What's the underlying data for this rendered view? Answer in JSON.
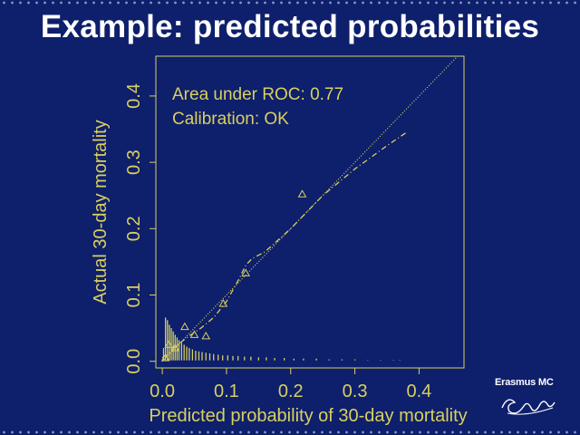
{
  "slide": {
    "title": "Example: predicted probabilities"
  },
  "logo": {
    "text": "Erasmus MC",
    "script_text": "Ezafung"
  },
  "colors": {
    "background": "#0e1f6b",
    "title": "#ffffff",
    "plot": "#d8d060"
  },
  "chart_data": {
    "type": "scatter",
    "title": "",
    "xlabel": "Predicted probability of 30-day mortality",
    "ylabel": "Actual 30-day mortality",
    "xlim": [
      -0.01,
      0.47
    ],
    "ylim": [
      -0.01,
      0.46
    ],
    "xticks": [
      "0.0",
      "0.1",
      "0.2",
      "0.3",
      "0.4"
    ],
    "xtick_values": [
      0.0,
      0.1,
      0.2,
      0.3,
      0.4
    ],
    "yticks": [
      "0.0",
      "0.1",
      "0.2",
      "0.3",
      "0.4"
    ],
    "ytick_values": [
      0.0,
      0.1,
      0.2,
      0.3,
      0.4
    ],
    "annotations": [
      "Area under ROC: 0.77",
      "Calibration: OK"
    ],
    "ideal_line": {
      "name": "ideal",
      "x": [
        0.0,
        0.46
      ],
      "y": [
        0.0,
        0.46
      ]
    },
    "smooth_curve": {
      "name": "calibration curve",
      "x": [
        0.0,
        0.02,
        0.04,
        0.06,
        0.08,
        0.1,
        0.12,
        0.13,
        0.14,
        0.16,
        0.2,
        0.25,
        0.3,
        0.35,
        0.38
      ],
      "y": [
        0.005,
        0.022,
        0.037,
        0.05,
        0.066,
        0.09,
        0.125,
        0.145,
        0.155,
        0.165,
        0.2,
        0.25,
        0.29,
        0.325,
        0.345
      ]
    },
    "group_points": {
      "name": "observed groups",
      "x": [
        0.005,
        0.01,
        0.02,
        0.035,
        0.05,
        0.068,
        0.095,
        0.13,
        0.218
      ],
      "y": [
        0.005,
        0.025,
        0.02,
        0.052,
        0.04,
        0.038,
        0.087,
        0.133,
        0.252
      ]
    },
    "spike_histogram": {
      "name": "distribution of predictions",
      "x": [
        0.002,
        0.005,
        0.008,
        0.011,
        0.014,
        0.017,
        0.02,
        0.023,
        0.026,
        0.03,
        0.034,
        0.038,
        0.042,
        0.047,
        0.052,
        0.057,
        0.062,
        0.068,
        0.074,
        0.08,
        0.087,
        0.094,
        0.102,
        0.11,
        0.118,
        0.128,
        0.138,
        0.15,
        0.162,
        0.175,
        0.19,
        0.205,
        0.22,
        0.24,
        0.26,
        0.28,
        0.3,
        0.32,
        0.34,
        0.36,
        0.37
      ],
      "height": [
        0.02,
        0.066,
        0.062,
        0.055,
        0.05,
        0.045,
        0.04,
        0.036,
        0.032,
        0.028,
        0.025,
        0.022,
        0.02,
        0.018,
        0.016,
        0.015,
        0.014,
        0.013,
        0.012,
        0.011,
        0.01,
        0.009,
        0.009,
        0.008,
        0.008,
        0.007,
        0.007,
        0.006,
        0.006,
        0.005,
        0.005,
        0.004,
        0.004,
        0.004,
        0.003,
        0.003,
        0.003,
        0.002,
        0.002,
        0.002,
        0.002
      ]
    }
  }
}
